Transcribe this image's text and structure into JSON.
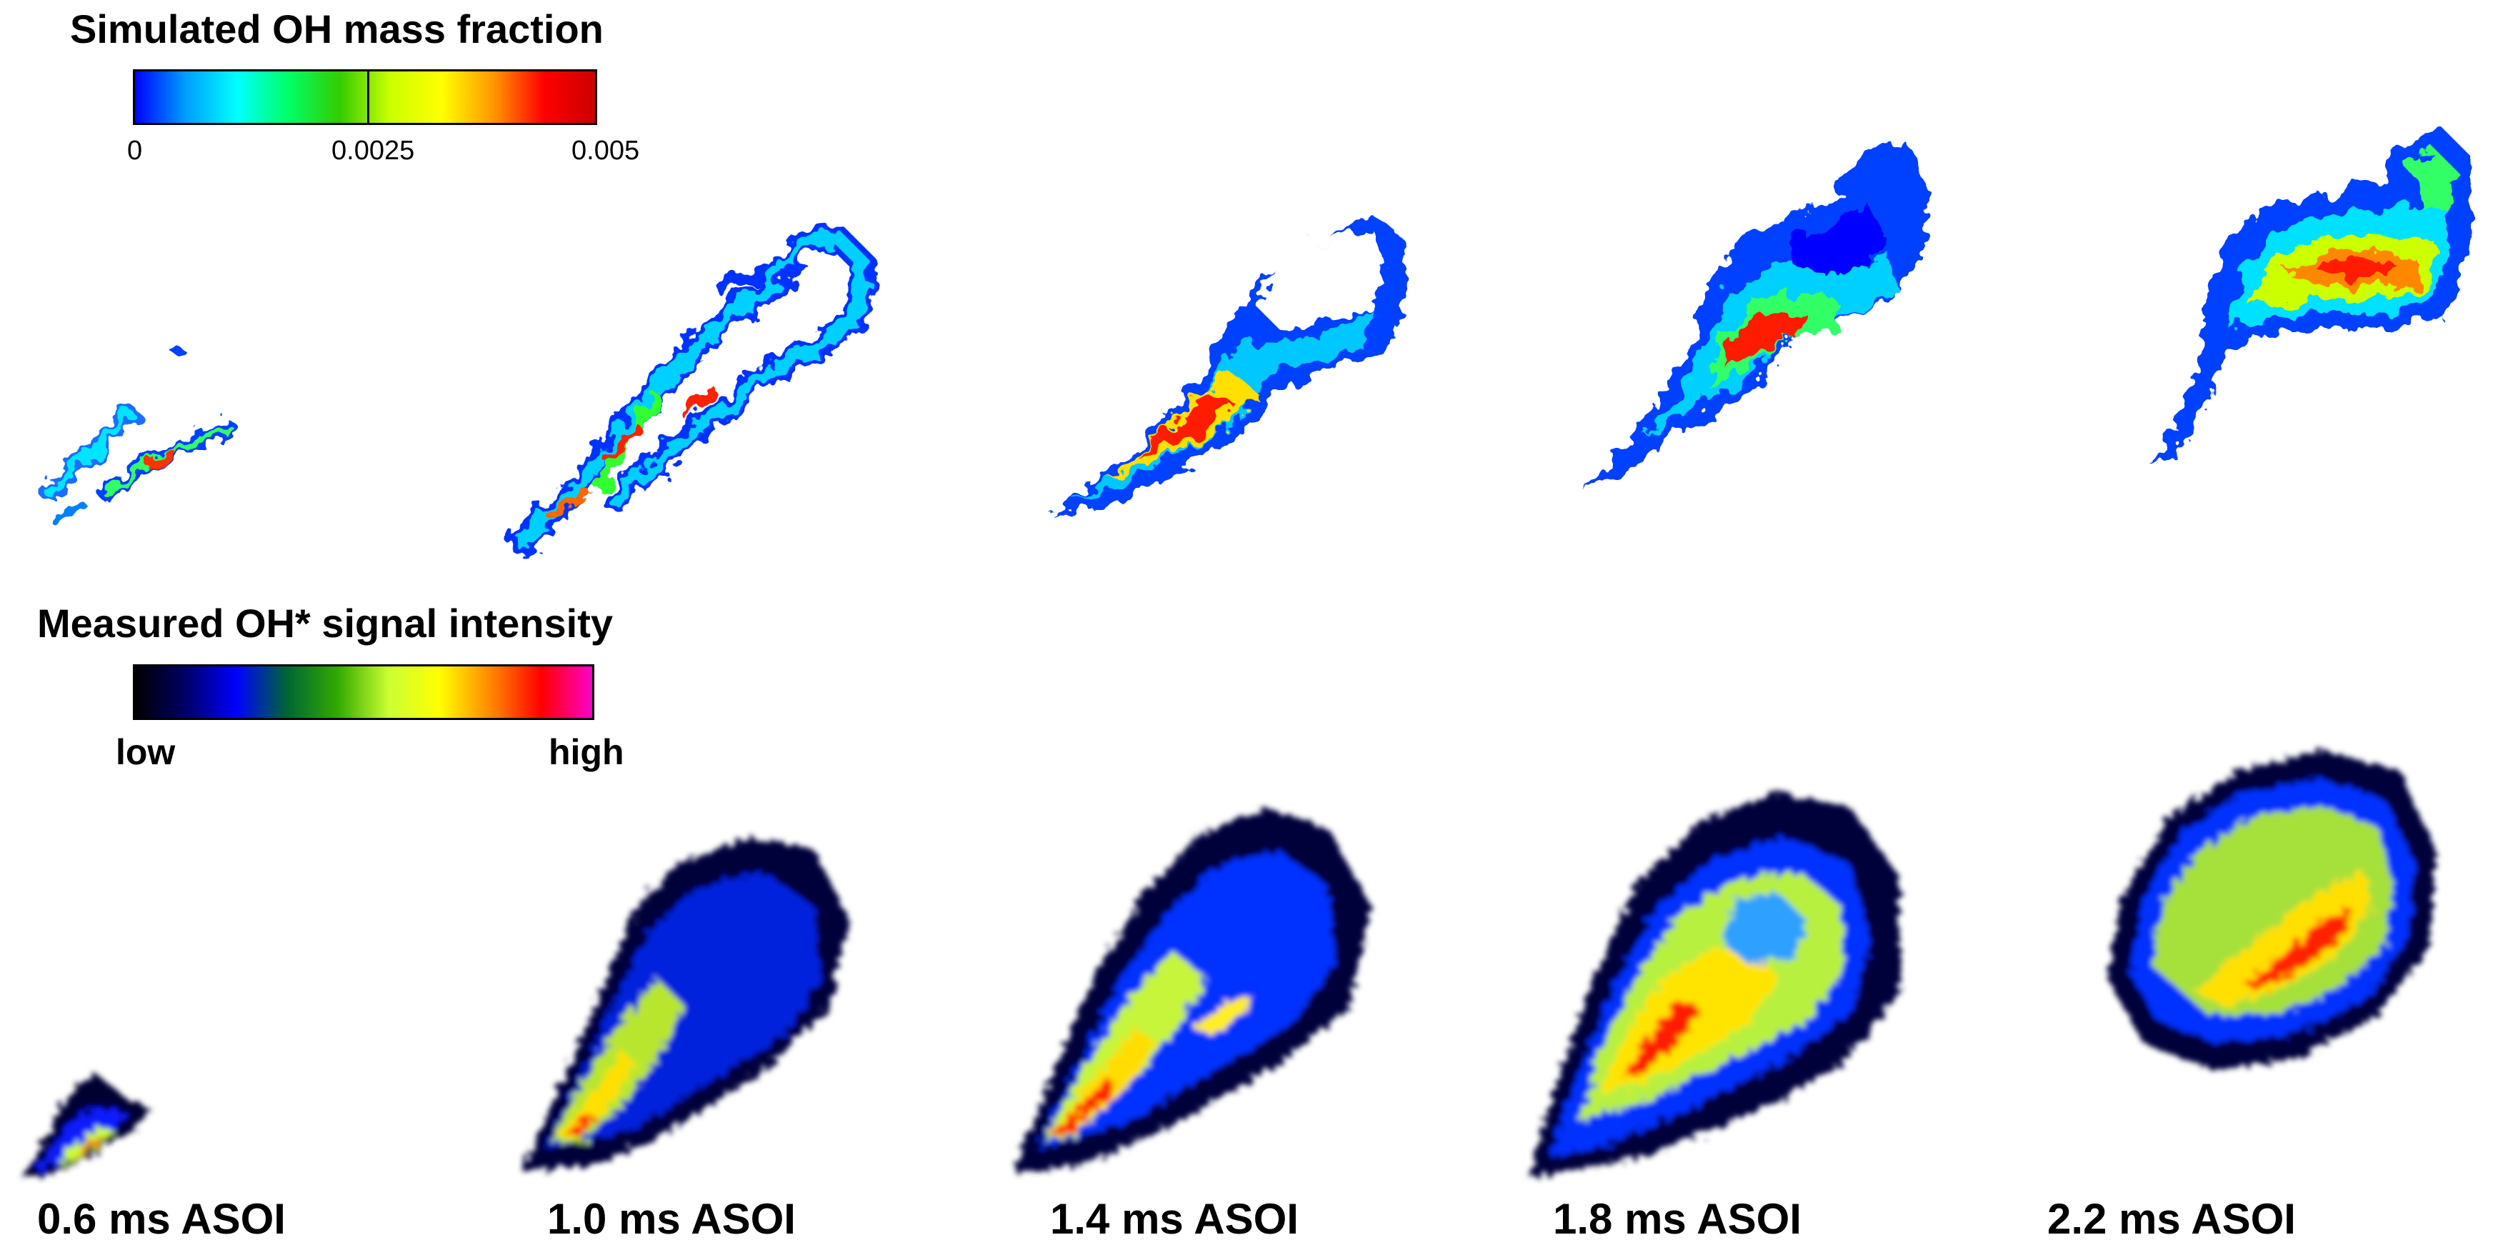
{
  "simulated_legend": {
    "title": "Simulated OH mass fraction",
    "ticks": [
      "0",
      "0.0025",
      "0.005"
    ],
    "stops": [
      "#0000ff",
      "#00a0ff",
      "#00ffff",
      "#00ff66",
      "#33cc00",
      "#ccff00",
      "#ffff00",
      "#ff9900",
      "#ff0000",
      "#cc0000"
    ]
  },
  "measured_legend": {
    "title": "Measured OH* signal intensity",
    "low_label": "low",
    "high_label": "high",
    "stops": [
      "#000000",
      "#000066",
      "#0000ff",
      "#006633",
      "#33aa00",
      "#ccff33",
      "#ffff00",
      "#ff8800",
      "#ff0000",
      "#ff00cc"
    ]
  },
  "time_labels": [
    "0.6 ms ASOI",
    "1.0 ms ASOI",
    "1.4 ms ASOI",
    "1.8 ms ASOI",
    "2.2 ms ASOI"
  ]
}
